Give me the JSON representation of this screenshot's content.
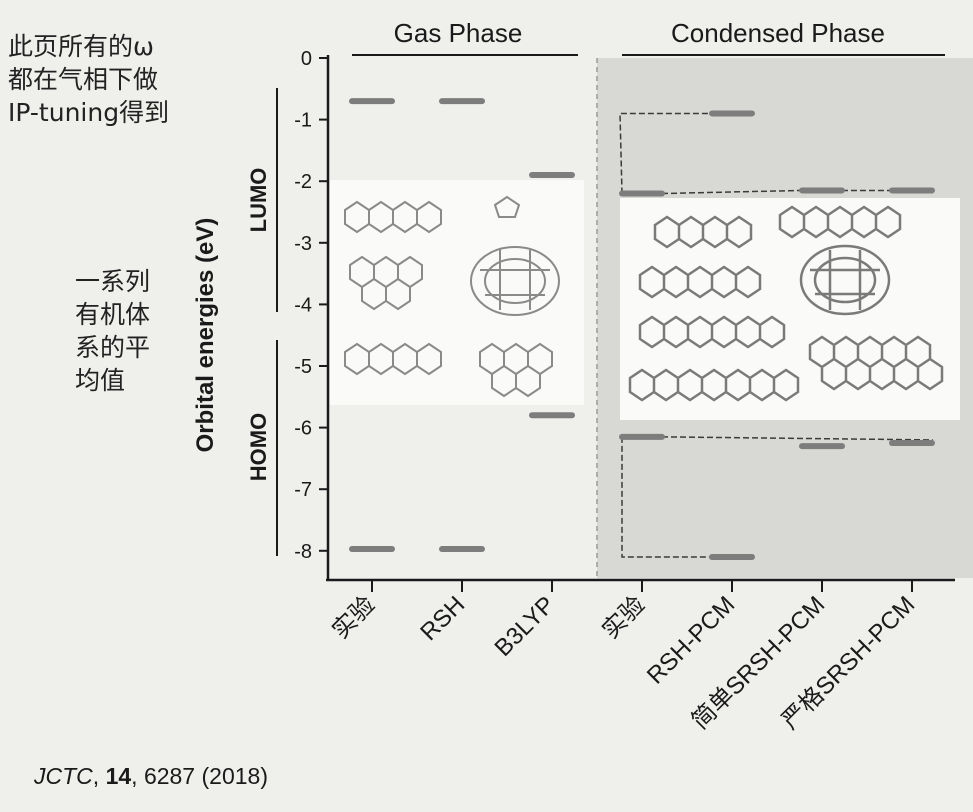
{
  "notes": {
    "top_lines": [
      "此页所有的ω",
      "都在气相下做",
      "IP-tuning得到"
    ],
    "middle_lines": [
      "一系列",
      "有机体",
      "系的平",
      "均值"
    ]
  },
  "citation": {
    "journal": "JCTC",
    "volume": "14",
    "pages": "6287 (2018)"
  },
  "chart_data": {
    "type": "energy-level diagram",
    "ylabel": "Orbital energies (eV)",
    "ylim": [
      -8.5,
      0
    ],
    "yticks": [
      0,
      -1,
      -2,
      -3,
      -4,
      -5,
      -6,
      -7,
      -8
    ],
    "groups": [
      {
        "name": "Gas Phase",
        "categories": [
          "实验",
          "RSH",
          "B3LYP"
        ]
      },
      {
        "name": "Condensed Phase",
        "categories": [
          "实验",
          "RSH-PCM",
          "简单SRSH-PCM",
          "严格SRSH-PCM"
        ]
      }
    ],
    "categories": [
      "实验",
      "RSH",
      "B3LYP",
      "实验",
      "RSH-PCM",
      "简单SRSH-PCM",
      "严格SRSH-PCM"
    ],
    "series": [
      {
        "name": "LUMO",
        "values": [
          -0.7,
          -0.7,
          -1.9,
          -2.2,
          -0.9,
          -2.15,
          -2.15
        ]
      },
      {
        "name": "HOMO",
        "values": [
          -7.97,
          -7.97,
          -5.8,
          -6.15,
          -8.1,
          -6.3,
          -6.25
        ]
      }
    ],
    "level_labels": [
      "LUMO",
      "HOMO"
    ],
    "colors": {
      "level": "#7d7d7d",
      "axis": "#1a1a1a",
      "condensed_bg": "#d9d9d5",
      "panel": "#fafafa"
    }
  }
}
